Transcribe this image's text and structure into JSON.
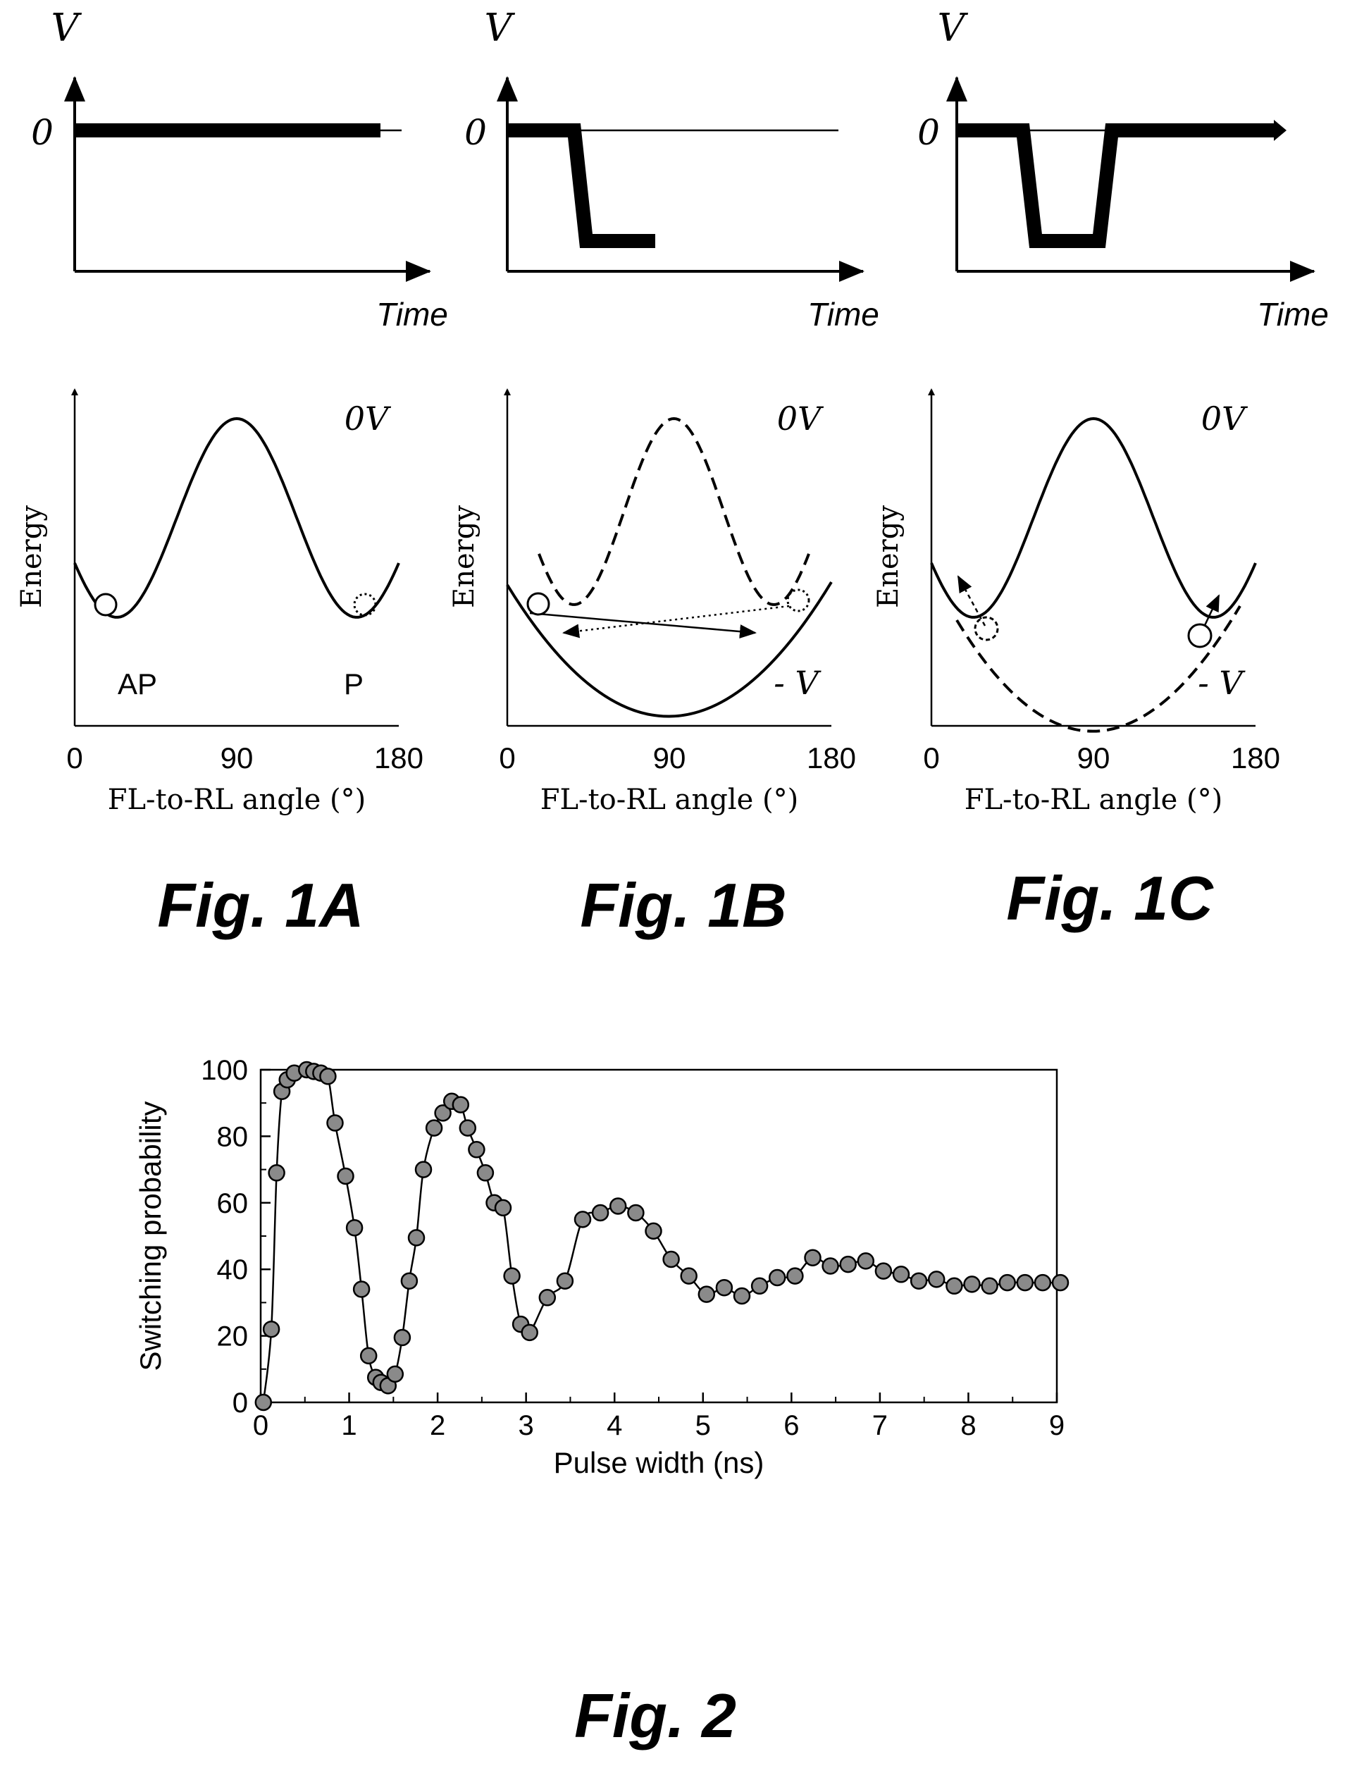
{
  "voltage_panels": [
    {
      "id": "1A",
      "y_axis_label": "V",
      "zero_label": "0",
      "x_axis_label": "Time",
      "waveform": "flat"
    },
    {
      "id": "1B",
      "y_axis_label": "V",
      "zero_label": "0",
      "x_axis_label": "Time",
      "waveform": "step-down"
    },
    {
      "id": "1C",
      "y_axis_label": "V",
      "zero_label": "0",
      "x_axis_label": "Time",
      "waveform": "pulse"
    }
  ],
  "energy_panels": [
    {
      "id": "1A",
      "y_axis_label": "Energy",
      "x_axis_label": "FL-to-RL angle (°)",
      "x_ticks": [
        "0",
        "90",
        "180"
      ],
      "state_label": "0V",
      "minus_label": "",
      "left_label": "AP",
      "right_label": "P"
    },
    {
      "id": "1B",
      "y_axis_label": "Energy",
      "x_axis_label": "FL-to-RL angle (°)",
      "x_ticks": [
        "0",
        "90",
        "180"
      ],
      "state_label": "0V",
      "minus_label": "- V",
      "left_label": "",
      "right_label": ""
    },
    {
      "id": "1C",
      "y_axis_label": "Energy",
      "x_axis_label": "FL-to-RL angle (°)",
      "x_ticks": [
        "0",
        "90",
        "180"
      ],
      "state_label": "0V",
      "minus_label": "- V",
      "left_label": "",
      "right_label": ""
    }
  ],
  "figure_labels": [
    "Fig. 1A",
    "Fig. 1B",
    "Fig. 1C",
    "Fig. 2"
  ],
  "chart_data": {
    "type": "line",
    "title": "",
    "xlabel": "Pulse width (ns)",
    "ylabel": "Switching probability",
    "xlim": [
      0,
      9
    ],
    "ylim": [
      0,
      100
    ],
    "x_ticks": [
      0,
      1,
      2,
      3,
      4,
      5,
      6,
      7,
      8,
      9
    ],
    "y_ticks": [
      0,
      20,
      40,
      60,
      80,
      100
    ],
    "grid": false,
    "markers": true,
    "marker_color": "#8a8a8a",
    "x": [
      0.03,
      0.12,
      0.18,
      0.24,
      0.3,
      0.38,
      0.52,
      0.6,
      0.68,
      0.76,
      0.84,
      0.96,
      1.06,
      1.14,
      1.22,
      1.3,
      1.36,
      1.44,
      1.52,
      1.6,
      1.68,
      1.76,
      1.84,
      1.96,
      2.06,
      2.16,
      2.26,
      2.34,
      2.44,
      2.54,
      2.64,
      2.74,
      2.84,
      2.94,
      3.04,
      3.24,
      3.44,
      3.64,
      3.84,
      4.04,
      4.24,
      4.44,
      4.64,
      4.84,
      5.04,
      5.24,
      5.44,
      5.64,
      5.84,
      6.04,
      6.24,
      6.44,
      6.64,
      6.84,
      7.04,
      7.24,
      7.44,
      7.64,
      7.84,
      8.04,
      8.24,
      8.44,
      8.64,
      8.84,
      9.04
    ],
    "y": [
      0,
      22,
      69,
      93.5,
      97,
      99,
      100,
      99.5,
      99,
      98,
      84,
      68,
      52.5,
      34,
      14,
      7.5,
      6,
      5,
      8.5,
      19.5,
      36.5,
      49.5,
      70,
      82.5,
      87,
      90.5,
      89.5,
      82.5,
      76,
      69,
      60,
      58.5,
      38,
      23.5,
      21,
      31.5,
      36.5,
      55,
      57,
      59,
      57,
      51.5,
      43,
      38,
      32.5,
      34.5,
      32,
      35,
      37.5,
      38,
      43.5,
      41,
      41.5,
      42.5,
      39.5,
      38.5,
      36.5,
      37,
      35,
      35.5,
      35,
      36,
      36,
      36,
      36
    ]
  },
  "chart_x": [
    0.03,
    0.12,
    0.18,
    0.24,
    0.3,
    0.38,
    0.52,
    0.6,
    0.68,
    0.76,
    0.84,
    0.96,
    1.06,
    1.14,
    1.22,
    1.3,
    1.36,
    1.44,
    1.52,
    1.6,
    1.68,
    1.76,
    1.84,
    1.96,
    2.06,
    2.16,
    2.26,
    2.34,
    2.44,
    2.54,
    2.64,
    2.74,
    2.84,
    2.94,
    3.04,
    3.24,
    3.44,
    3.64,
    3.84,
    4.04,
    4.24,
    4.44,
    4.64,
    4.84,
    5.04,
    5.24,
    5.44,
    5.64,
    5.84,
    6.04,
    6.24,
    6.44,
    6.64,
    6.84,
    7.04,
    7.24,
    7.44,
    7.64,
    7.84,
    8.04,
    8.24,
    8.44,
    8.64,
    8.84,
    9.04
  ],
  "chart_y": [
    0,
    22,
    69,
    93.5,
    97,
    99,
    100,
    99.5,
    99,
    98,
    84,
    68,
    52.5,
    34,
    14,
    7.5,
    6,
    5,
    8.5,
    19.5,
    36.5,
    49.5,
    70,
    82.5,
    87,
    90.5,
    89.5,
    82.5,
    76,
    69,
    60,
    58.5,
    38,
    23.5,
    21,
    31.5,
    36.5,
    55,
    57,
    59,
    57,
    51.5,
    43,
    38,
    32.5,
    34.5,
    32,
    35,
    37.5,
    38,
    43.5,
    41,
    41.5,
    42.5,
    39.5,
    38.5,
    36.5,
    37,
    35,
    35.5,
    35,
    36,
    36,
    36,
    36
  ]
}
